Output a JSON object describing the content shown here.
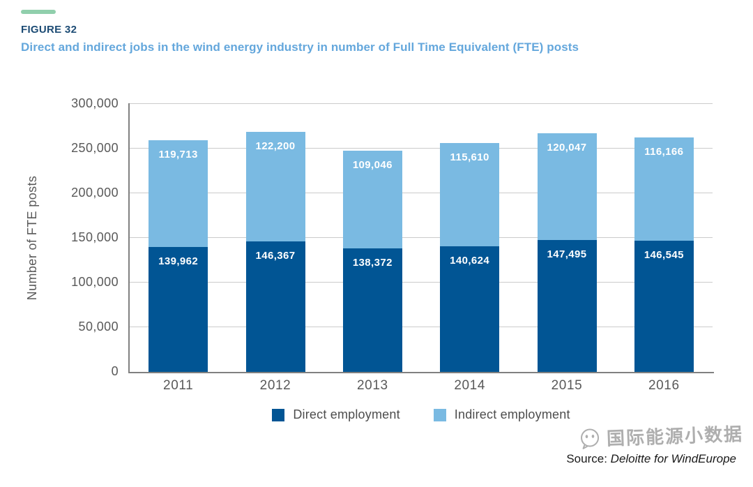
{
  "header": {
    "figure_label": "FIGURE 32",
    "title": "Direct and indirect jobs in the wind energy industry in number of Full Time Equivalent (FTE) posts"
  },
  "chart_data": {
    "type": "bar",
    "stacked": true,
    "title": "Direct and indirect jobs in the wind energy industry in number of Full Time Equivalent (FTE) posts",
    "categories": [
      "2011",
      "2012",
      "2013",
      "2014",
      "2015",
      "2016"
    ],
    "series": [
      {
        "name": "Direct employment",
        "color": "#015594",
        "values": [
          139962,
          146367,
          138372,
          140624,
          147495,
          146545
        ]
      },
      {
        "name": "Indirect employment",
        "color": "#7ABAE2",
        "values": [
          119713,
          122200,
          109046,
          115610,
          120047,
          116166
        ]
      }
    ],
    "xlabel": "",
    "ylabel": "Number of FTE posts",
    "ylim": [
      0,
      300000
    ],
    "ytick_step": 50000,
    "yticks": [
      "0",
      "50,000",
      "100,000",
      "150,000",
      "200,000",
      "250,000",
      "300,000"
    ],
    "grid": true,
    "legend_position": "bottom",
    "bar_value_labels": "white, inside top of each segment, thousands separated with commas"
  },
  "footer": {
    "source_prefix": "Source:",
    "source_name": "Deloitte for WindEurope",
    "watermark_text": "国际能源小数据",
    "watermark_icon": "wechat-chat-face-icon"
  },
  "colors": {
    "accent-dash": "#90CFAC",
    "figure-label": "#1C4B74",
    "figure-title": "#64A7DC",
    "axis": "#808080",
    "grid": "#CBCBCB",
    "tick-text": "#595959",
    "legend-text": "#4D4D4D",
    "watermark": "#9A9A9A",
    "bar-dark": "#015594",
    "bar-light": "#7ABAE2"
  }
}
